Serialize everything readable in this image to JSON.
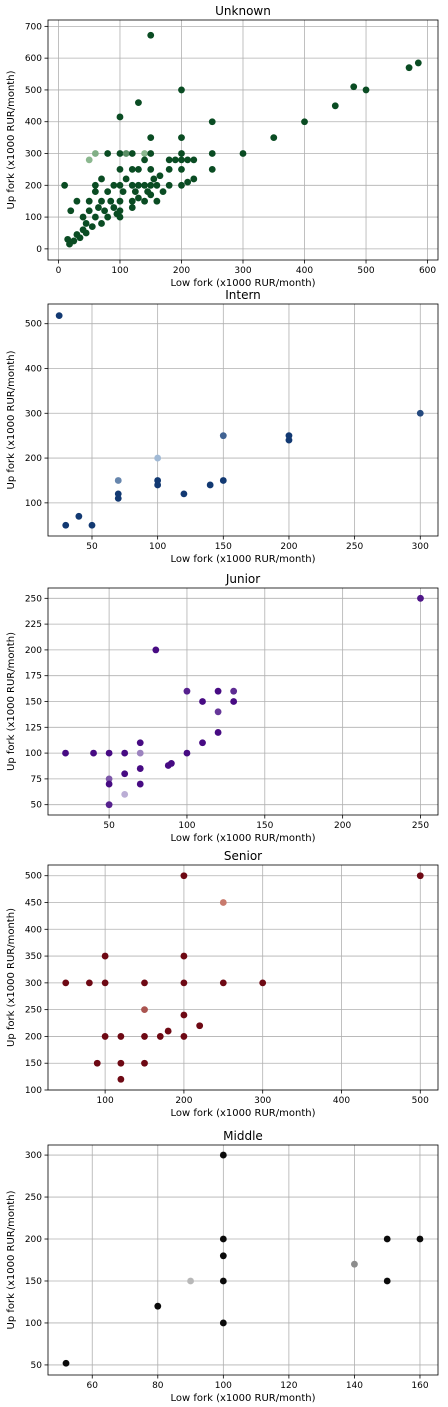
{
  "chart_data": [
    {
      "type": "scatter",
      "title": "Unknown",
      "xlabel": "Low fork (x1000 RUR/month)",
      "ylabel": "Up fork (x1000 RUR/month)",
      "xlim": [
        -17,
        617
      ],
      "ylim": [
        -35,
        720
      ],
      "xticks": [
        0,
        100,
        200,
        300,
        400,
        500,
        600
      ],
      "yticks": [
        0,
        100,
        200,
        300,
        400,
        500,
        600,
        700
      ],
      "grid": true,
      "colormap": {
        "dark": "#00441b",
        "light": "#c7e9c0"
      },
      "points": [
        {
          "x": 10,
          "y": 200,
          "c": 0.95
        },
        {
          "x": 15,
          "y": 30,
          "c": 0.95
        },
        {
          "x": 18,
          "y": 15,
          "c": 0.95
        },
        {
          "x": 20,
          "y": 120,
          "c": 0.95
        },
        {
          "x": 25,
          "y": 25,
          "c": 0.95
        },
        {
          "x": 30,
          "y": 150,
          "c": 0.95
        },
        {
          "x": 30,
          "y": 45,
          "c": 0.95
        },
        {
          "x": 35,
          "y": 35,
          "c": 0.95
        },
        {
          "x": 40,
          "y": 60,
          "c": 0.95
        },
        {
          "x": 40,
          "y": 100,
          "c": 0.95
        },
        {
          "x": 45,
          "y": 80,
          "c": 0.95
        },
        {
          "x": 45,
          "y": 50,
          "c": 0.95
        },
        {
          "x": 50,
          "y": 150,
          "c": 0.95
        },
        {
          "x": 50,
          "y": 120,
          "c": 0.95
        },
        {
          "x": 50,
          "y": 280,
          "c": 0.3
        },
        {
          "x": 55,
          "y": 70,
          "c": 0.95
        },
        {
          "x": 60,
          "y": 300,
          "c": 0.35
        },
        {
          "x": 60,
          "y": 100,
          "c": 0.95
        },
        {
          "x": 60,
          "y": 200,
          "c": 0.95
        },
        {
          "x": 60,
          "y": 180,
          "c": 0.95
        },
        {
          "x": 65,
          "y": 130,
          "c": 0.95
        },
        {
          "x": 70,
          "y": 220,
          "c": 0.95
        },
        {
          "x": 70,
          "y": 150,
          "c": 0.95
        },
        {
          "x": 70,
          "y": 80,
          "c": 0.95
        },
        {
          "x": 75,
          "y": 120,
          "c": 0.95
        },
        {
          "x": 80,
          "y": 300,
          "c": 0.95
        },
        {
          "x": 80,
          "y": 180,
          "c": 0.95
        },
        {
          "x": 80,
          "y": 100,
          "c": 0.95
        },
        {
          "x": 85,
          "y": 150,
          "c": 0.95
        },
        {
          "x": 90,
          "y": 130,
          "c": 0.95
        },
        {
          "x": 90,
          "y": 200,
          "c": 0.95
        },
        {
          "x": 95,
          "y": 110,
          "c": 0.95
        },
        {
          "x": 100,
          "y": 415,
          "c": 0.95
        },
        {
          "x": 100,
          "y": 300,
          "c": 0.95
        },
        {
          "x": 100,
          "y": 250,
          "c": 0.95
        },
        {
          "x": 100,
          "y": 200,
          "c": 0.95
        },
        {
          "x": 100,
          "y": 150,
          "c": 0.95
        },
        {
          "x": 100,
          "y": 120,
          "c": 0.95
        },
        {
          "x": 100,
          "y": 100,
          "c": 0.95
        },
        {
          "x": 105,
          "y": 180,
          "c": 0.95
        },
        {
          "x": 110,
          "y": 300,
          "c": 0.55
        },
        {
          "x": 110,
          "y": 220,
          "c": 0.95
        },
        {
          "x": 120,
          "y": 300,
          "c": 0.95
        },
        {
          "x": 120,
          "y": 250,
          "c": 0.95
        },
        {
          "x": 120,
          "y": 200,
          "c": 0.95
        },
        {
          "x": 120,
          "y": 150,
          "c": 0.95
        },
        {
          "x": 120,
          "y": 130,
          "c": 0.95
        },
        {
          "x": 125,
          "y": 180,
          "c": 0.95
        },
        {
          "x": 130,
          "y": 460,
          "c": 0.95
        },
        {
          "x": 130,
          "y": 250,
          "c": 0.95
        },
        {
          "x": 130,
          "y": 200,
          "c": 0.95
        },
        {
          "x": 130,
          "y": 160,
          "c": 0.95
        },
        {
          "x": 140,
          "y": 300,
          "c": 0.3
        },
        {
          "x": 140,
          "y": 280,
          "c": 0.95
        },
        {
          "x": 140,
          "y": 200,
          "c": 0.95
        },
        {
          "x": 140,
          "y": 150,
          "c": 0.95
        },
        {
          "x": 145,
          "y": 180,
          "c": 0.95
        },
        {
          "x": 150,
          "y": 672,
          "c": 0.95
        },
        {
          "x": 150,
          "y": 350,
          "c": 0.95
        },
        {
          "x": 150,
          "y": 300,
          "c": 0.95
        },
        {
          "x": 150,
          "y": 250,
          "c": 0.95
        },
        {
          "x": 150,
          "y": 200,
          "c": 0.95
        },
        {
          "x": 150,
          "y": 170,
          "c": 0.95
        },
        {
          "x": 155,
          "y": 220,
          "c": 0.95
        },
        {
          "x": 160,
          "y": 200,
          "c": 0.95
        },
        {
          "x": 160,
          "y": 150,
          "c": 0.95
        },
        {
          "x": 165,
          "y": 230,
          "c": 0.95
        },
        {
          "x": 170,
          "y": 180,
          "c": 0.95
        },
        {
          "x": 180,
          "y": 280,
          "c": 0.95
        },
        {
          "x": 180,
          "y": 250,
          "c": 0.95
        },
        {
          "x": 180,
          "y": 200,
          "c": 0.95
        },
        {
          "x": 190,
          "y": 280,
          "c": 0.95
        },
        {
          "x": 200,
          "y": 500,
          "c": 0.95
        },
        {
          "x": 200,
          "y": 350,
          "c": 0.95
        },
        {
          "x": 200,
          "y": 300,
          "c": 0.95
        },
        {
          "x": 200,
          "y": 280,
          "c": 0.95
        },
        {
          "x": 200,
          "y": 250,
          "c": 0.95
        },
        {
          "x": 200,
          "y": 200,
          "c": 0.95
        },
        {
          "x": 210,
          "y": 280,
          "c": 0.95
        },
        {
          "x": 210,
          "y": 210,
          "c": 0.95
        },
        {
          "x": 220,
          "y": 280,
          "c": 0.95
        },
        {
          "x": 220,
          "y": 220,
          "c": 0.95
        },
        {
          "x": 250,
          "y": 400,
          "c": 0.95
        },
        {
          "x": 250,
          "y": 300,
          "c": 0.95
        },
        {
          "x": 250,
          "y": 250,
          "c": 0.95
        },
        {
          "x": 300,
          "y": 300,
          "c": 0.95
        },
        {
          "x": 350,
          "y": 350,
          "c": 0.95
        },
        {
          "x": 400,
          "y": 400,
          "c": 0.95
        },
        {
          "x": 450,
          "y": 450,
          "c": 0.95
        },
        {
          "x": 480,
          "y": 510,
          "c": 0.95
        },
        {
          "x": 500,
          "y": 500,
          "c": 0.95
        },
        {
          "x": 570,
          "y": 570,
          "c": 0.95
        },
        {
          "x": 585,
          "y": 585,
          "c": 0.95
        }
      ]
    },
    {
      "type": "scatter",
      "title": "Intern",
      "xlabel": "Low fork (x1000 RUR/month)",
      "ylabel": "Up fork (x1000 RUR/month)",
      "xlim": [
        16.5,
        313.5
      ],
      "ylim": [
        26,
        544
      ],
      "xticks": [
        50,
        100,
        150,
        200,
        250,
        300
      ],
      "yticks": [
        100,
        200,
        300,
        400,
        500
      ],
      "grid": true,
      "colormap": {
        "dark": "#08306b",
        "light": "#c6dbef"
      },
      "points": [
        {
          "x": 30,
          "y": 50,
          "c": 0.95
        },
        {
          "x": 40,
          "y": 70,
          "c": 0.95
        },
        {
          "x": 50,
          "y": 50,
          "c": 0.95
        },
        {
          "x": 25,
          "y": 518,
          "c": 0.95
        },
        {
          "x": 70,
          "y": 110,
          "c": 0.95
        },
        {
          "x": 70,
          "y": 120,
          "c": 0.95
        },
        {
          "x": 70,
          "y": 150,
          "c": 0.5
        },
        {
          "x": 100,
          "y": 200,
          "c": 0.2
        },
        {
          "x": 100,
          "y": 150,
          "c": 0.95
        },
        {
          "x": 100,
          "y": 140,
          "c": 0.95
        },
        {
          "x": 120,
          "y": 120,
          "c": 0.95
        },
        {
          "x": 140,
          "y": 140,
          "c": 0.95
        },
        {
          "x": 150,
          "y": 150,
          "c": 0.95
        },
        {
          "x": 150,
          "y": 250,
          "c": 0.7
        },
        {
          "x": 200,
          "y": 250,
          "c": 0.95
        },
        {
          "x": 200,
          "y": 240,
          "c": 0.95
        },
        {
          "x": 300,
          "y": 300,
          "c": 0.85
        }
      ]
    },
    {
      "type": "scatter",
      "title": "Junior",
      "xlabel": "Low fork (x1000 RUR/month)",
      "ylabel": "Up fork (x1000 RUR/month)",
      "xlim": [
        10.75,
        261.25
      ],
      "ylim": [
        40,
        260
      ],
      "xticks": [
        50,
        100,
        150,
        200,
        250
      ],
      "yticks": [
        50,
        75,
        100,
        125,
        150,
        175,
        200,
        225,
        250
      ],
      "grid": true,
      "colormap": {
        "dark": "#3f007d",
        "light": "#dadaeb"
      },
      "points": [
        {
          "x": 22,
          "y": 100,
          "c": 0.95
        },
        {
          "x": 40,
          "y": 100,
          "c": 0.95
        },
        {
          "x": 50,
          "y": 100,
          "c": 0.95
        },
        {
          "x": 50,
          "y": 75,
          "c": 0.6
        },
        {
          "x": 50,
          "y": 70,
          "c": 0.95
        },
        {
          "x": 50,
          "y": 50,
          "c": 0.85
        },
        {
          "x": 60,
          "y": 100,
          "c": 0.95
        },
        {
          "x": 60,
          "y": 80,
          "c": 0.95
        },
        {
          "x": 60,
          "y": 60,
          "c": 0.2
        },
        {
          "x": 70,
          "y": 110,
          "c": 0.95
        },
        {
          "x": 70,
          "y": 100,
          "c": 0.4
        },
        {
          "x": 70,
          "y": 85,
          "c": 0.95
        },
        {
          "x": 70,
          "y": 70,
          "c": 0.95
        },
        {
          "x": 80,
          "y": 200,
          "c": 0.95
        },
        {
          "x": 88,
          "y": 88,
          "c": 0.95
        },
        {
          "x": 90,
          "y": 90,
          "c": 0.95
        },
        {
          "x": 100,
          "y": 160,
          "c": 0.85
        },
        {
          "x": 100,
          "y": 100,
          "c": 0.95
        },
        {
          "x": 110,
          "y": 150,
          "c": 0.95
        },
        {
          "x": 110,
          "y": 110,
          "c": 0.95
        },
        {
          "x": 120,
          "y": 160,
          "c": 0.95
        },
        {
          "x": 120,
          "y": 140,
          "c": 0.75
        },
        {
          "x": 120,
          "y": 120,
          "c": 0.95
        },
        {
          "x": 130,
          "y": 160,
          "c": 0.8
        },
        {
          "x": 130,
          "y": 150,
          "c": 0.95
        },
        {
          "x": 250,
          "y": 250,
          "c": 0.9
        }
      ]
    },
    {
      "type": "scatter",
      "title": "Senior",
      "xlabel": "Low fork (x1000 RUR/month)",
      "ylabel": "Up fork (x1000 RUR/month)",
      "xlim": [
        27.5,
        522.5
      ],
      "ylim": [
        100,
        520
      ],
      "xticks": [
        100,
        200,
        300,
        400,
        500
      ],
      "yticks": [
        100,
        150,
        200,
        250,
        300,
        350,
        400,
        450,
        500
      ],
      "grid": true,
      "colormap": {
        "dark": "#67000d",
        "light": "#fcbba1"
      },
      "points": [
        {
          "x": 50,
          "y": 300,
          "c": 0.95
        },
        {
          "x": 80,
          "y": 300,
          "c": 0.95
        },
        {
          "x": 90,
          "y": 150,
          "c": 0.95
        },
        {
          "x": 100,
          "y": 350,
          "c": 0.95
        },
        {
          "x": 100,
          "y": 300,
          "c": 0.95
        },
        {
          "x": 100,
          "y": 200,
          "c": 0.95
        },
        {
          "x": 120,
          "y": 200,
          "c": 0.95
        },
        {
          "x": 120,
          "y": 150,
          "c": 0.95
        },
        {
          "x": 120,
          "y": 120,
          "c": 0.95
        },
        {
          "x": 150,
          "y": 300,
          "c": 0.95
        },
        {
          "x": 150,
          "y": 250,
          "c": 0.55
        },
        {
          "x": 150,
          "y": 200,
          "c": 0.95
        },
        {
          "x": 150,
          "y": 150,
          "c": 0.95
        },
        {
          "x": 170,
          "y": 200,
          "c": 0.95
        },
        {
          "x": 180,
          "y": 210,
          "c": 0.95
        },
        {
          "x": 200,
          "y": 500,
          "c": 0.95
        },
        {
          "x": 200,
          "y": 350,
          "c": 0.95
        },
        {
          "x": 200,
          "y": 300,
          "c": 0.95
        },
        {
          "x": 200,
          "y": 240,
          "c": 0.95
        },
        {
          "x": 200,
          "y": 200,
          "c": 0.95
        },
        {
          "x": 220,
          "y": 220,
          "c": 0.95
        },
        {
          "x": 250,
          "y": 450,
          "c": 0.35
        },
        {
          "x": 250,
          "y": 300,
          "c": 0.95
        },
        {
          "x": 300,
          "y": 300,
          "c": 0.95
        },
        {
          "x": 500,
          "y": 500,
          "c": 0.95
        }
      ]
    },
    {
      "type": "scatter",
      "title": "Middle",
      "xlabel": "Low fork (x1000 RUR/month)",
      "ylabel": "Up fork (x1000 RUR/month)",
      "xlim": [
        46.5,
        165.5
      ],
      "ylim": [
        38,
        312
      ],
      "xticks": [
        60,
        80,
        100,
        120,
        140,
        160
      ],
      "yticks": [
        50,
        100,
        150,
        200,
        250,
        300
      ],
      "grid": true,
      "colormap": {
        "dark": "#000000",
        "light": "#d9d9d9"
      },
      "points": [
        {
          "x": 52,
          "y": 52,
          "c": 0.95
        },
        {
          "x": 80,
          "y": 120,
          "c": 0.95
        },
        {
          "x": 90,
          "y": 150,
          "c": 0.15
        },
        {
          "x": 100,
          "y": 300,
          "c": 0.95
        },
        {
          "x": 100,
          "y": 200,
          "c": 0.95
        },
        {
          "x": 100,
          "y": 180,
          "c": 0.95
        },
        {
          "x": 100,
          "y": 150,
          "c": 0.95
        },
        {
          "x": 100,
          "y": 100,
          "c": 0.95
        },
        {
          "x": 140,
          "y": 170,
          "c": 0.35
        },
        {
          "x": 150,
          "y": 200,
          "c": 0.95
        },
        {
          "x": 150,
          "y": 150,
          "c": 0.95
        },
        {
          "x": 160,
          "y": 200,
          "c": 0.95
        }
      ]
    }
  ]
}
